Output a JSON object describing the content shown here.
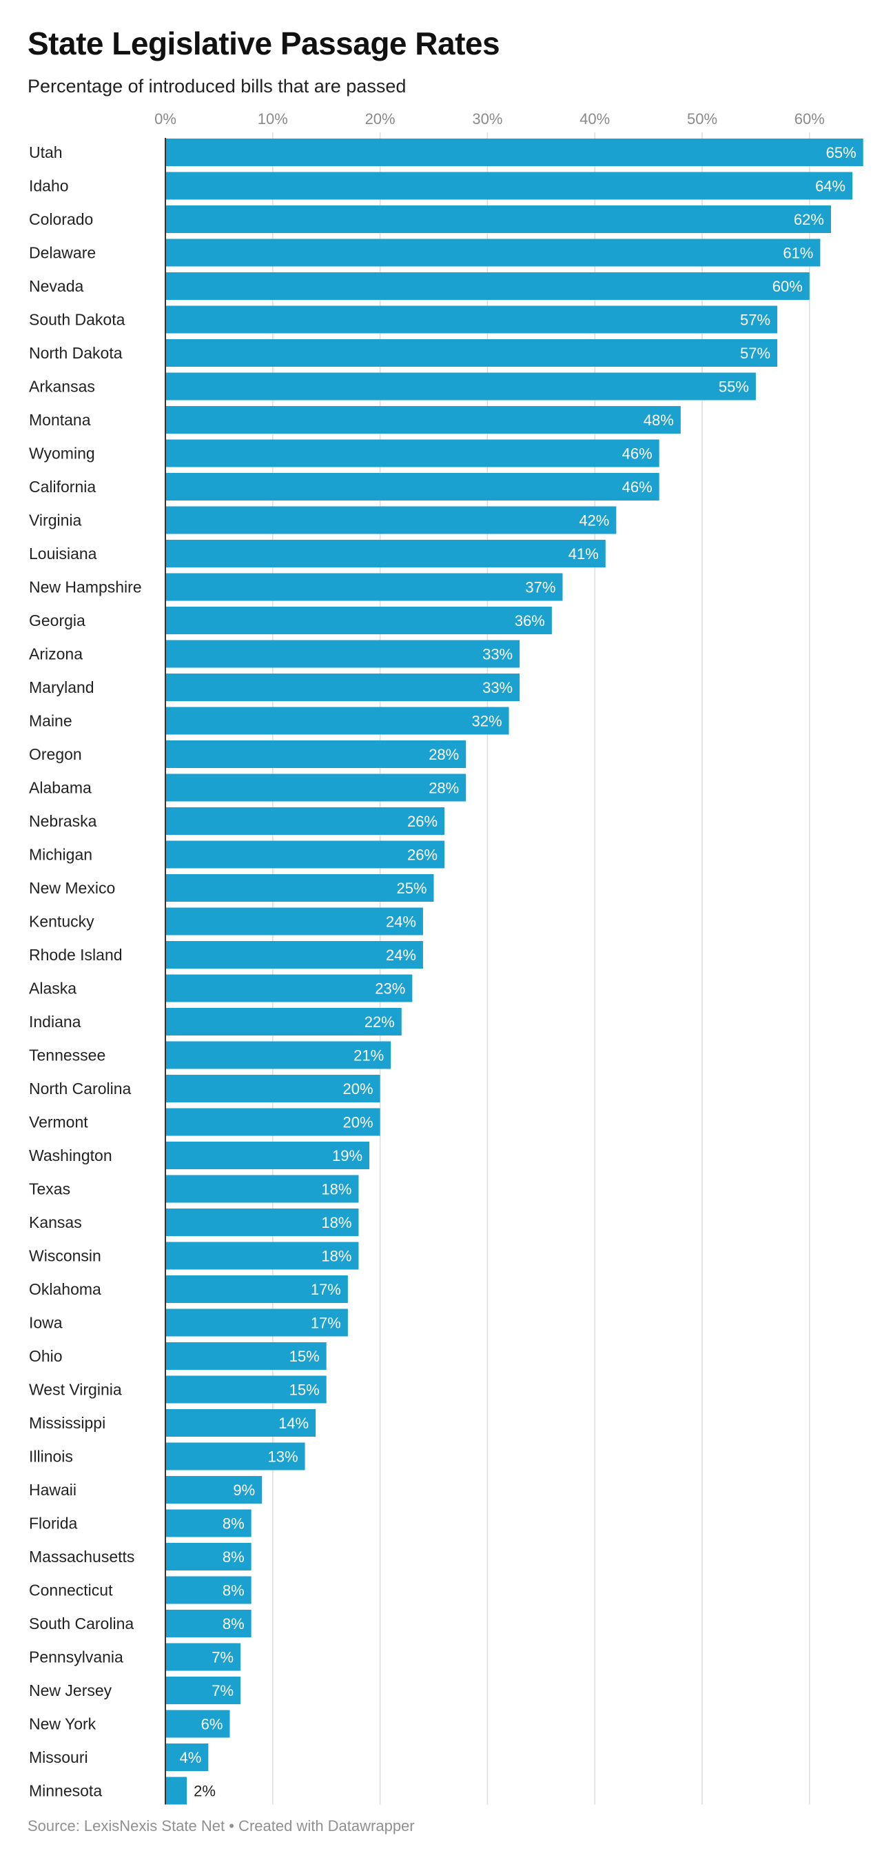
{
  "chart_data": {
    "type": "bar",
    "orientation": "horizontal",
    "title": "State Legislative Passage Rates",
    "subtitle": "Percentage of introduced bills that are passed",
    "source": "Source: LexisNexis State Net • Created with Datawrapper",
    "value_suffix": "%",
    "xlim": [
      0,
      65
    ],
    "ticks": [
      0,
      10,
      20,
      30,
      40,
      50,
      60
    ],
    "tick_labels": [
      "0%",
      "10%",
      "20%",
      "30%",
      "40%",
      "50%",
      "60%"
    ],
    "grid": true,
    "bar_color": "#1ba1d0",
    "categories": [
      "Utah",
      "Idaho",
      "Colorado",
      "Delaware",
      "Nevada",
      "South Dakota",
      "North Dakota",
      "Arkansas",
      "Montana",
      "Wyoming",
      "California",
      "Virginia",
      "Louisiana",
      "New Hampshire",
      "Georgia",
      "Arizona",
      "Maryland",
      "Maine",
      "Oregon",
      "Alabama",
      "Nebraska",
      "Michigan",
      "New Mexico",
      "Kentucky",
      "Rhode Island",
      "Alaska",
      "Indiana",
      "Tennessee",
      "North Carolina",
      "Vermont",
      "Washington",
      "Texas",
      "Kansas",
      "Wisconsin",
      "Oklahoma",
      "Iowa",
      "Ohio",
      "West Virginia",
      "Mississippi",
      "Illinois",
      "Hawaii",
      "Florida",
      "Massachusetts",
      "Connecticut",
      "South Carolina",
      "Pennsylvania",
      "New Jersey",
      "New York",
      "Missouri",
      "Minnesota"
    ],
    "values": [
      65,
      64,
      62,
      61,
      60,
      57,
      57,
      55,
      48,
      46,
      46,
      42,
      41,
      37,
      36,
      33,
      33,
      32,
      28,
      28,
      26,
      26,
      25,
      24,
      24,
      23,
      22,
      21,
      20,
      20,
      19,
      18,
      18,
      18,
      17,
      17,
      15,
      15,
      14,
      13,
      9,
      8,
      8,
      8,
      8,
      7,
      7,
      6,
      4,
      2
    ]
  }
}
